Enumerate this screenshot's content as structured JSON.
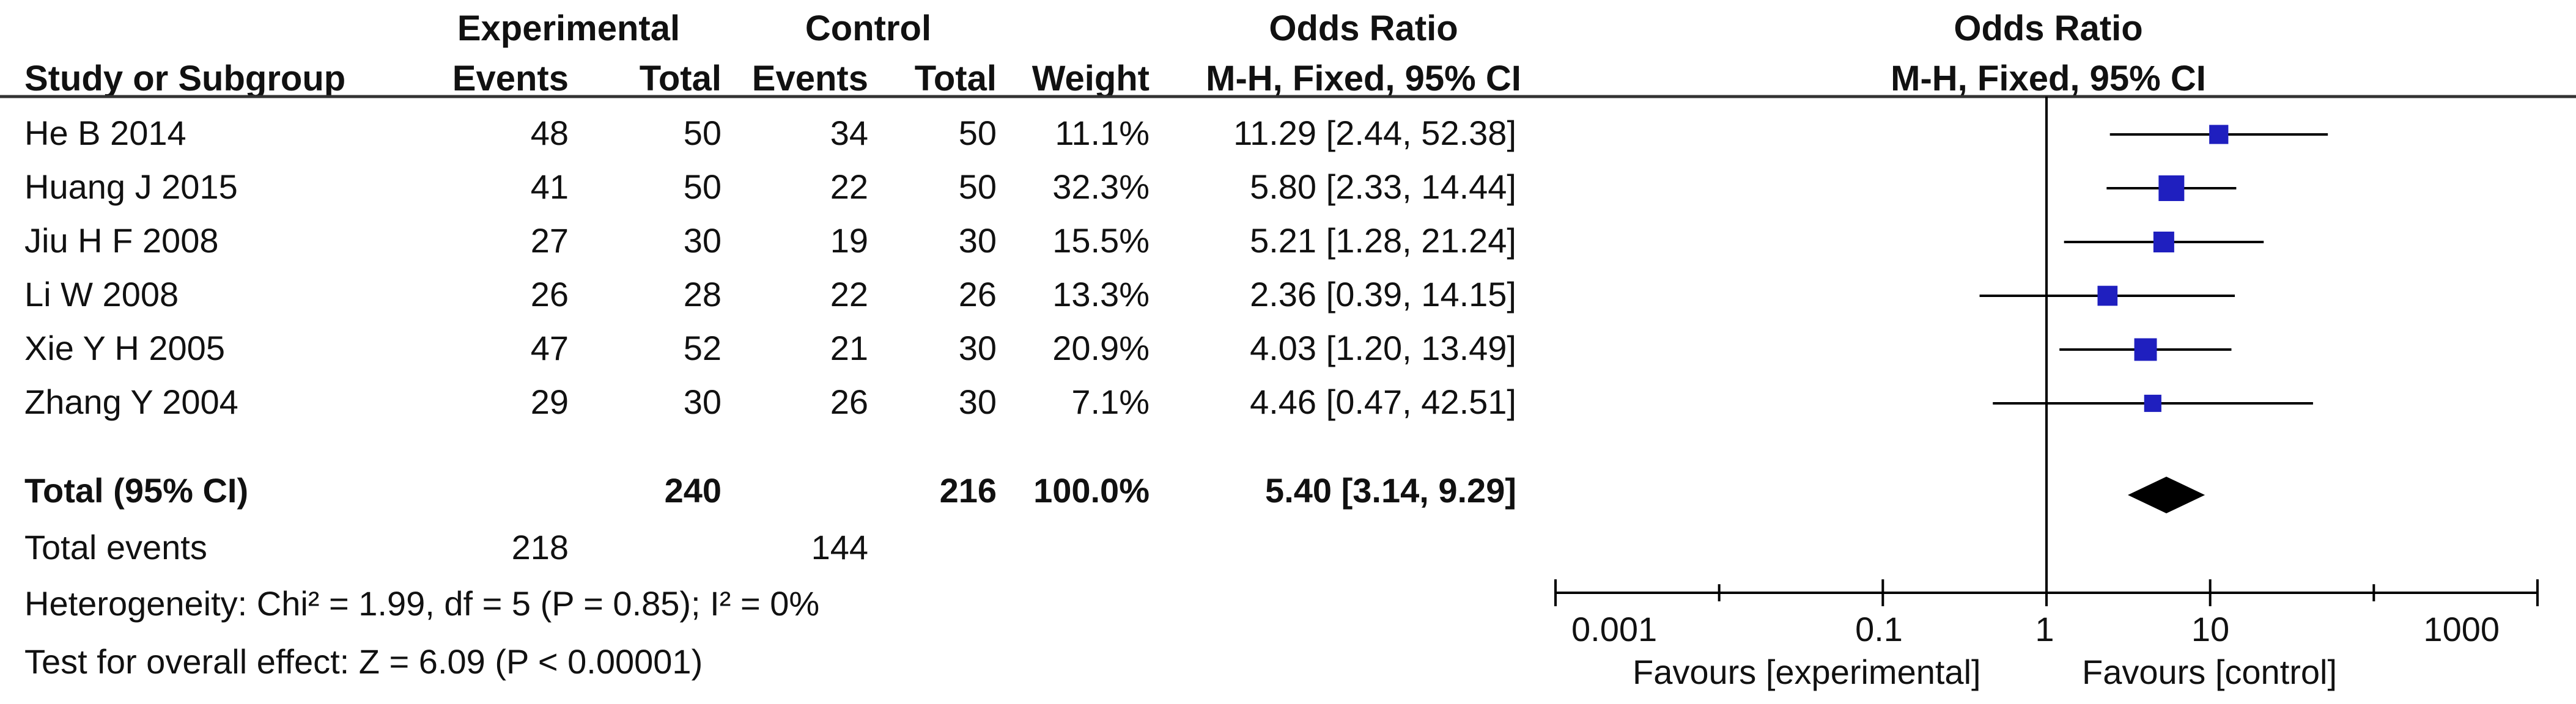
{
  "headers": {
    "experimental": "Experimental",
    "control": "Control",
    "odds_ratio_table": "Odds Ratio",
    "odds_ratio_plot": "Odds Ratio",
    "study": "Study or Subgroup",
    "exp_events": "Events",
    "exp_total": "Total",
    "ctl_events": "Events",
    "ctl_total": "Total",
    "weight": "Weight",
    "method_table": "M-H, Fixed, 95% CI",
    "method_plot": "M-H, Fixed, 95% CI"
  },
  "total": {
    "label": "Total (95% CI)",
    "exp_total": "240",
    "ctl_total": "216",
    "weight": "100.0%",
    "ci": "5.40 [3.14, 9.29]"
  },
  "total_events": {
    "label": "Total events",
    "exp": "218",
    "ctl": "144"
  },
  "heterogeneity": "Heterogeneity: Chi² = 1.99, df = 5 (P = 0.85); I² = 0%",
  "overall_effect": "Test for overall effect: Z = 6.09 (P < 0.00001)",
  "axis": {
    "ticks": [
      "0.001",
      "0.1",
      "1",
      "10",
      "1000"
    ],
    "favours_left": "Favours [experimental]",
    "favours_right": "Favours [control]"
  },
  "colors": {
    "marker": "#1f1fbf",
    "diamond": "#000000",
    "lines": "#000000"
  },
  "chart_data": {
    "type": "forest",
    "scale": "log",
    "xlim": [
      0.001,
      1000
    ],
    "studies": [
      {
        "name": "He B 2014",
        "exp_events": 48,
        "exp_total": 50,
        "ctl_events": 34,
        "ctl_total": 50,
        "weight": "11.1%",
        "or": 11.29,
        "lo": 2.44,
        "hi": 52.38,
        "ci_text": "11.29 [2.44, 52.38]"
      },
      {
        "name": "Huang J 2015",
        "exp_events": 41,
        "exp_total": 50,
        "ctl_events": 22,
        "ctl_total": 50,
        "weight": "32.3%",
        "or": 5.8,
        "lo": 2.33,
        "hi": 14.44,
        "ci_text": "5.80 [2.33, 14.44]"
      },
      {
        "name": "Jiu H F 2008",
        "exp_events": 27,
        "exp_total": 30,
        "ctl_events": 19,
        "ctl_total": 30,
        "weight": "15.5%",
        "or": 5.21,
        "lo": 1.28,
        "hi": 21.24,
        "ci_text": "5.21 [1.28, 21.24]"
      },
      {
        "name": "Li W 2008",
        "exp_events": 26,
        "exp_total": 28,
        "ctl_events": 22,
        "ctl_total": 26,
        "weight": "13.3%",
        "or": 2.36,
        "lo": 0.39,
        "hi": 14.15,
        "ci_text": "2.36 [0.39, 14.15]"
      },
      {
        "name": "Xie Y H 2005",
        "exp_events": 47,
        "exp_total": 52,
        "ctl_events": 21,
        "ctl_total": 30,
        "weight": "20.9%",
        "or": 4.03,
        "lo": 1.2,
        "hi": 13.49,
        "ci_text": "4.03 [1.20, 13.49]"
      },
      {
        "name": "Zhang Y 2004",
        "exp_events": 29,
        "exp_total": 30,
        "ctl_events": 26,
        "ctl_total": 30,
        "weight": "7.1%",
        "or": 4.46,
        "lo": 0.47,
        "hi": 42.51,
        "ci_text": "4.46 [0.47, 42.51]"
      }
    ],
    "pooled": {
      "or": 5.4,
      "lo": 3.14,
      "hi": 9.29
    }
  }
}
